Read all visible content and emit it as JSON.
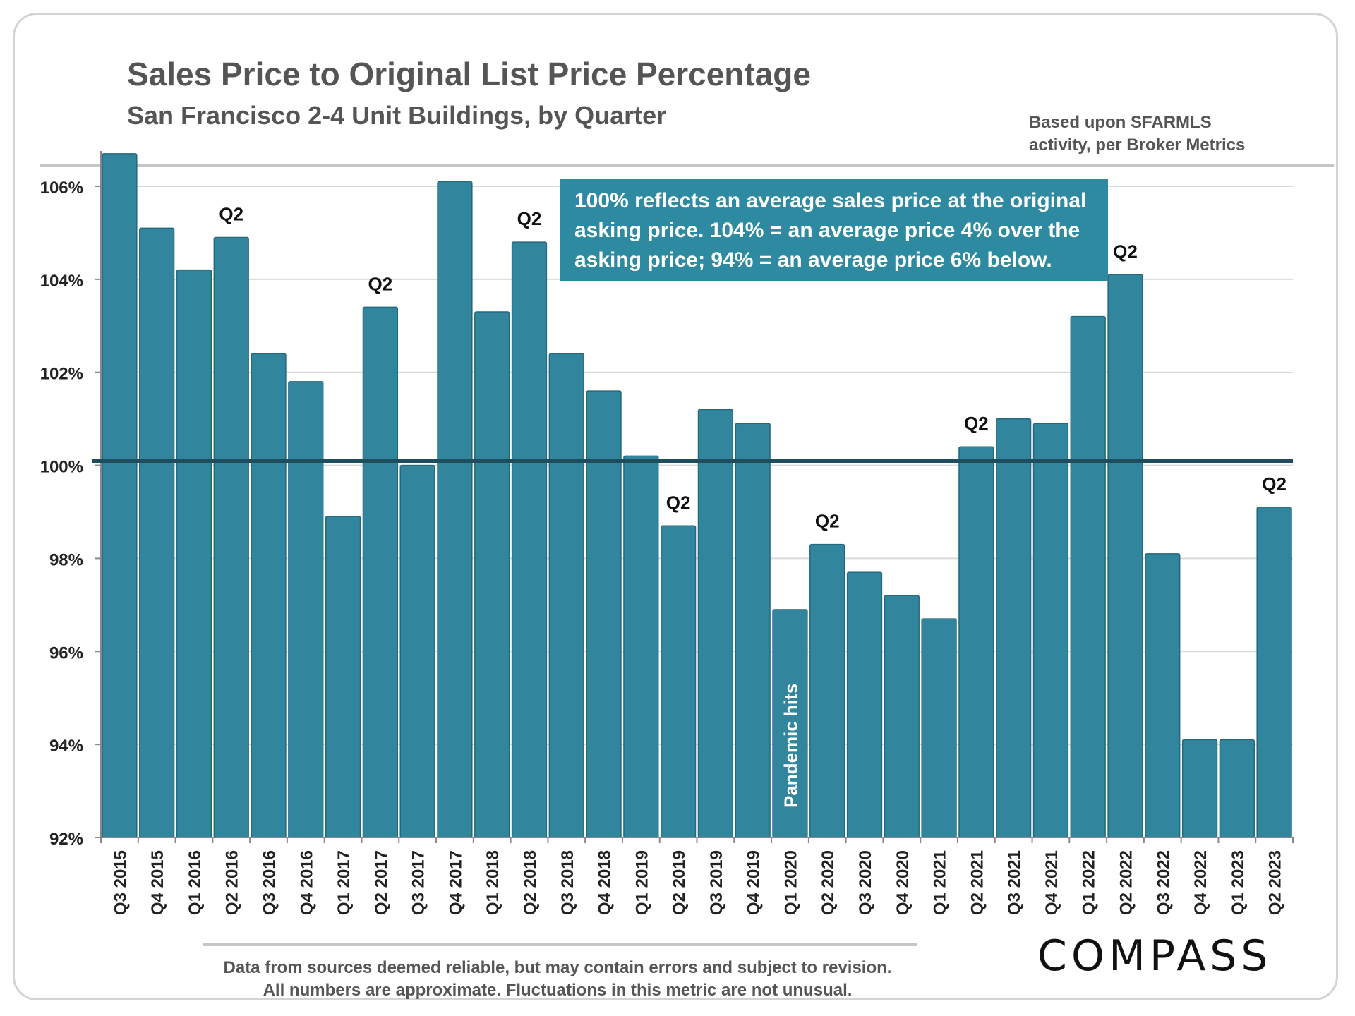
{
  "header": {
    "title": "Sales Price to Original List Price Percentage",
    "subtitle": "San Francisco 2-4 Unit Buildings, by Quarter",
    "source_line1": "Based upon SFARMLS",
    "source_line2": "activity, per Broker Metrics"
  },
  "note": {
    "line1": "100% reflects an average sales price at the original",
    "line2": "asking price. 104% = an average price 4% over the",
    "line3": "asking price; 94% = an average price 6% below."
  },
  "annotation": "Pandemic hits",
  "footer": {
    "line1": "Data from sources deemed reliable, but may contain errors and subject to revision.",
    "line2": "All numbers are approximate. Fluctuations in this metric are not unusual."
  },
  "logo": "COMPASS",
  "colors": {
    "bar": "#31869e",
    "bar_edge": "#24687b",
    "reference_line": "#1e4e5e",
    "note_box": "#2e8aa1",
    "grid": "#d9d9d9"
  },
  "chart_data": {
    "type": "bar",
    "title": "Sales Price to Original List Price Percentage",
    "subtitle": "San Francisco 2-4 Unit Buildings, by Quarter",
    "xlabel": "",
    "ylabel": "",
    "ylim": [
      92,
      107
    ],
    "yticks": [
      92,
      94,
      96,
      98,
      100,
      102,
      104,
      106
    ],
    "ytick_labels": [
      "92%",
      "94%",
      "96%",
      "98%",
      "100%",
      "102%",
      "104%",
      "106%"
    ],
    "reference_line": 100.1,
    "grid": true,
    "categories": [
      "Q3 2015",
      "Q4 2015",
      "Q1 2016",
      "Q2 2016",
      "Q3 2016",
      "Q4 2016",
      "Q1 2017",
      "Q2 2017",
      "Q3 2017",
      "Q4 2017",
      "Q1 2018",
      "Q2 2018",
      "Q3 2018",
      "Q4 2018",
      "Q1 2019",
      "Q2 2019",
      "Q3 2019",
      "Q4 2019",
      "Q1 2020",
      "Q2 2020",
      "Q3 2020",
      "Q4 2020",
      "Q1 2021",
      "Q2 2021",
      "Q3 2021",
      "Q4 2021",
      "Q1 2022",
      "Q2 2022",
      "Q3 2022",
      "Q4 2022",
      "Q1 2023",
      "Q2 2023"
    ],
    "values": [
      106.7,
      105.1,
      104.2,
      104.9,
      102.4,
      101.8,
      98.9,
      103.4,
      100.0,
      106.1,
      103.3,
      104.8,
      102.4,
      101.6,
      100.2,
      98.7,
      101.2,
      100.9,
      96.9,
      98.3,
      97.7,
      97.2,
      96.7,
      100.4,
      101.0,
      100.9,
      103.2,
      104.1,
      98.1,
      94.1,
      94.1,
      99.1
    ],
    "bar_labels": [
      {
        "category": "Q2 2016",
        "text": "Q2"
      },
      {
        "category": "Q2 2017",
        "text": "Q2"
      },
      {
        "category": "Q2 2018",
        "text": "Q2"
      },
      {
        "category": "Q2 2019",
        "text": "Q2"
      },
      {
        "category": "Q2 2020",
        "text": "Q2"
      },
      {
        "category": "Q2 2021",
        "text": "Q2"
      },
      {
        "category": "Q2 2022",
        "text": "Q2"
      },
      {
        "category": "Q2 2023",
        "text": "Q2"
      }
    ],
    "annotations": [
      {
        "category": "Q1 2020",
        "text": "Pandemic hits"
      }
    ]
  }
}
